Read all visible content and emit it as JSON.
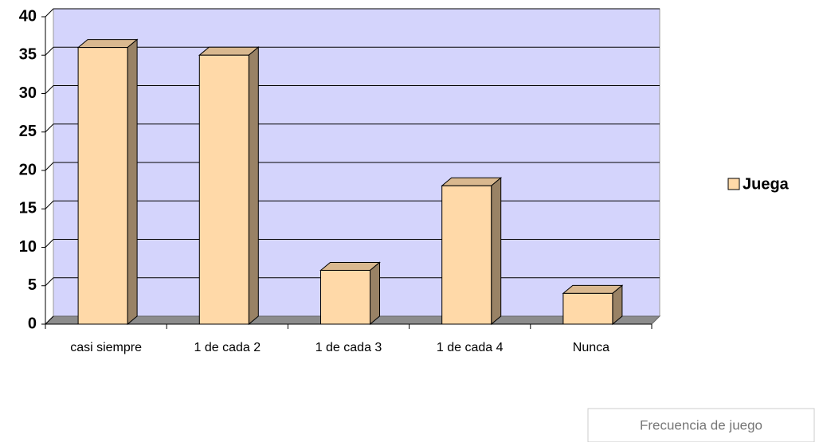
{
  "chart_data": {
    "type": "bar",
    "categories": [
      "casi siempre",
      "1 de cada 2",
      "1 de cada 3",
      "1 de cada 4",
      "Nunca"
    ],
    "series": [
      {
        "name": "Juega",
        "color": "#ffd9a8",
        "values": [
          36,
          35,
          7,
          18,
          4
        ]
      }
    ],
    "ylim": [
      0,
      40
    ],
    "yticks": [
      0,
      5,
      10,
      15,
      20,
      25,
      30,
      35,
      40
    ],
    "grid": true,
    "legend": "right",
    "caption": "Frecuencia de juego"
  }
}
